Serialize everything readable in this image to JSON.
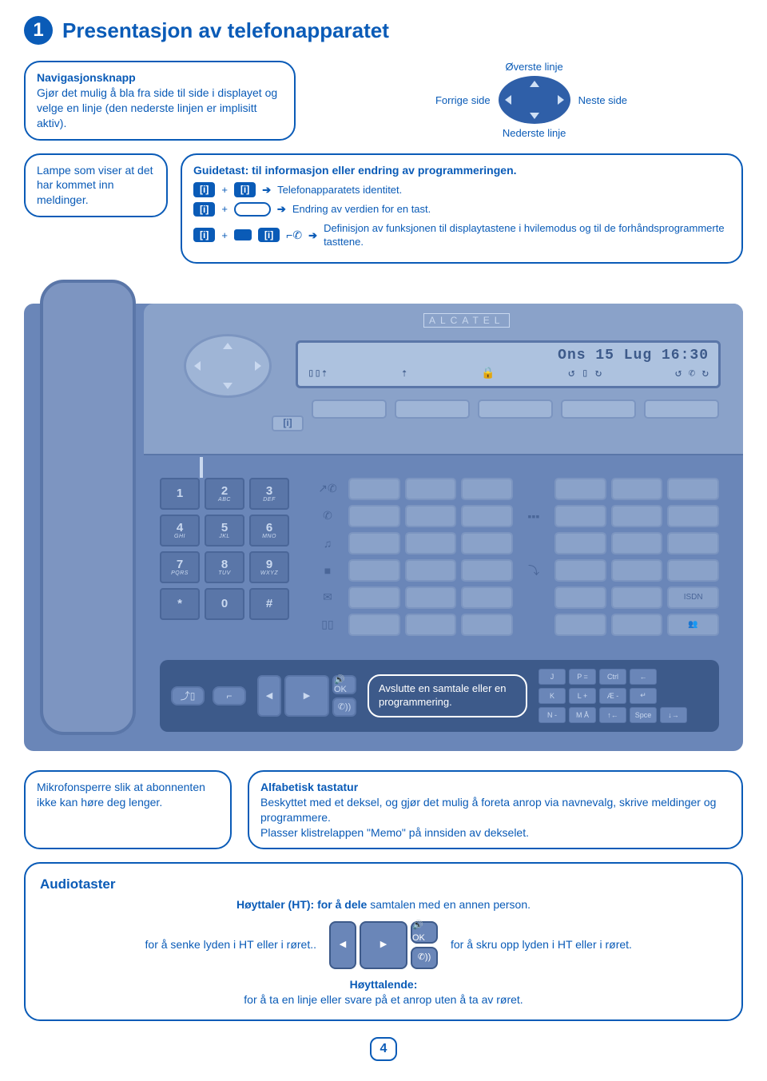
{
  "title": {
    "badge": "1",
    "text": "Presentasjon av telefonapparatet"
  },
  "nav_callout": {
    "heading": "Navigasjonsknapp",
    "body": "Gjør det mulig å bla fra side til side i displayet og velge en linje (den nederste linjen er implisitt aktiv)."
  },
  "nav_labels": {
    "top": "Øverste linje",
    "bottom": "Nederste linje",
    "left": "Forrige side",
    "right": "Neste side"
  },
  "lamp_callout": {
    "text": "Lampe som viser at det har kommet inn meldinger."
  },
  "guide_callout": {
    "heading": "Guidetast: til informasjon eller endring av programmeringen.",
    "line1": "Telefonapparatets identitet.",
    "line2": "Endring av verdien for en tast.",
    "line3": "Definisjon av funksjonen til displaytastene i hvilemodus og til de forhåndsprogrammerte tasttene.",
    "i_label": "[i]",
    "plus": "+"
  },
  "phone": {
    "brand": "ALCATEL",
    "display_line1": "Ons 15 Lug 16:30",
    "display_glyphs": [
      "▯▯⇡",
      "⇡",
      "🔒",
      "↺ ▯ ↻",
      "↺ ✆ ↻"
    ],
    "i_key": "[i]",
    "keypad": [
      {
        "main": "1",
        "sub": ""
      },
      {
        "main": "2",
        "sub": "ABC"
      },
      {
        "main": "3",
        "sub": "DEF"
      },
      {
        "main": "4",
        "sub": "GHI"
      },
      {
        "main": "5",
        "sub": "JKL"
      },
      {
        "main": "6",
        "sub": "MNO"
      },
      {
        "main": "7",
        "sub": "PQRS"
      },
      {
        "main": "8",
        "sub": "TUV"
      },
      {
        "main": "9",
        "sub": "WXYZ"
      },
      {
        "main": "*",
        "sub": ""
      },
      {
        "main": "0",
        "sub": ""
      },
      {
        "main": "#",
        "sub": ""
      }
    ],
    "func_icons_left": [
      "↗✆",
      "✆",
      "♫",
      "■",
      "✉",
      "▯▯"
    ],
    "func_icons_right": [
      "",
      "▪▪▪",
      "",
      "⤵",
      ""
    ],
    "isdn_label": "ISDN",
    "people_label": "👥",
    "lower": {
      "left_btn1": "⤴▯",
      "left_btn2": "⌐",
      "vol_left": "◀",
      "vol_right": "▶",
      "spk_top": "🔊 OK",
      "spk_bottom": "✆))",
      "end_heading": "Avslutte en",
      "end_body": "samtale eller en programmering.",
      "alpha_keys": [
        "J",
        "P =",
        "Ctrl",
        "←",
        "K",
        "L +",
        "Æ -",
        "↵",
        "N -",
        "M Å",
        "↑←",
        "Spce",
        "↓→"
      ]
    }
  },
  "mic_callout": {
    "text": "Mikrofonsperre slik at abonnenten ikke kan høre deg lenger."
  },
  "alpha_callout": {
    "heading": "Alfabetisk tastatur",
    "body": "Beskyttet med et deksel, og gjør det mulig å foreta anrop via navnevalg, skrive meldinger og  programmere.",
    "body2": "Plasser klistrelappen \"Memo\" på innsiden av dekselet."
  },
  "audio_callout": {
    "title": "Audiotaster",
    "ht_heading": "Høyttaler (HT): for å dele",
    "ht_body": "samtalen med en annen person.",
    "left_text": "for å senke lyden i HT eller i røret..",
    "right_text": "for å skru opp lyden i HT eller i røret.",
    "hf_heading": "Høyttalende:",
    "hf_body": "for å ta en linje eller svare på et anrop uten å ta av røret.",
    "diagram": {
      "top": "🔊 OK",
      "bottom": "✆))",
      "left": "◀",
      "right": "▶"
    }
  },
  "page_number": "4",
  "colors": {
    "primary": "#0a5bb7",
    "phone_body": "#6a86b8",
    "phone_top": "#8aa2c9",
    "dark_panel": "#3d5a8a",
    "key": "#5a76a8",
    "light": "#c9d8ef"
  }
}
